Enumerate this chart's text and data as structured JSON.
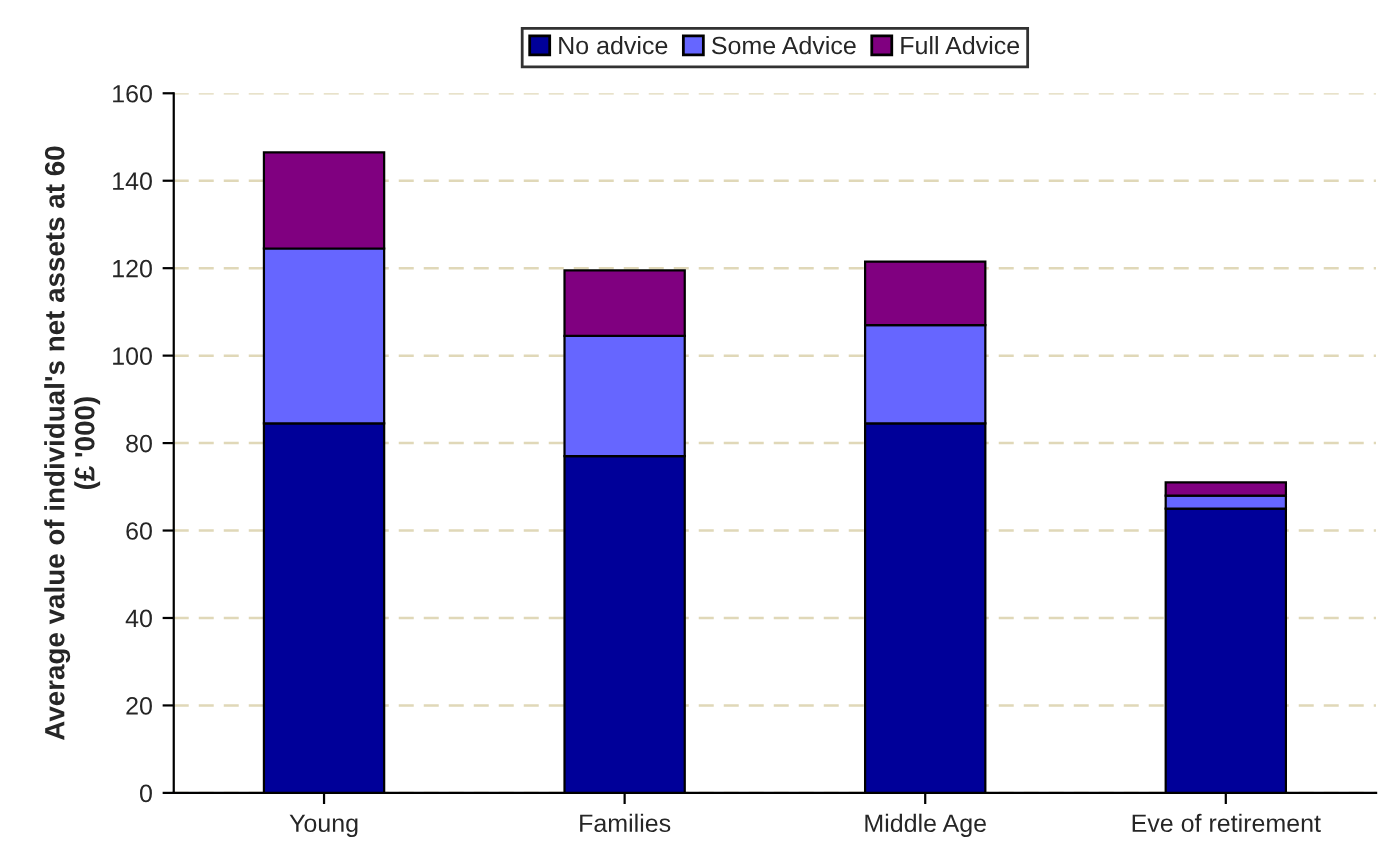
{
  "chart_data": {
    "type": "bar",
    "stacked": true,
    "ylabel": "Average value of individual's net assets at 60\n(£ '000)",
    "categories": [
      "Young",
      "Families",
      "Middle Age",
      "Eve of retirement"
    ],
    "series": [
      {
        "name": "No advice",
        "color": "#000099",
        "values": [
          84.5,
          77,
          84.5,
          65
        ]
      },
      {
        "name": "Some Advice",
        "color": "#6666ff",
        "values": [
          40,
          27.5,
          22.5,
          3
        ]
      },
      {
        "name": "Full Advice",
        "color": "#800080",
        "values": [
          22,
          15,
          14.5,
          3
        ]
      }
    ],
    "ylim": [
      0,
      160
    ],
    "yticks": [
      0,
      20,
      40,
      60,
      80,
      100,
      120,
      140,
      160
    ],
    "grid": "y",
    "legend": "top"
  }
}
